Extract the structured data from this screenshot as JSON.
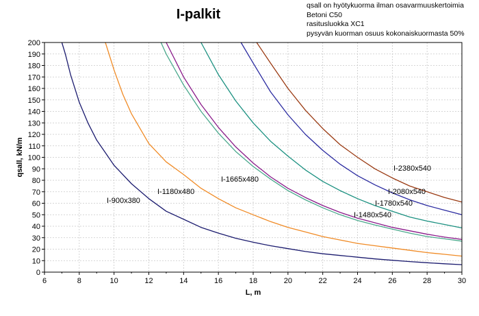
{
  "header": {
    "title": "I-palkit",
    "notes": [
      "qsall on hyötykuorma ilman osavarmuuskertoimia",
      "Betoni C50",
      "rasitusluokka XC1",
      "pysyvän kuorman osuus kokonaiskuormasta 50%"
    ]
  },
  "chart_data": {
    "type": "line",
    "title": "I-palkit",
    "xlabel": "L, m",
    "ylabel": "qsall, kN/m",
    "xlim": [
      6,
      30
    ],
    "ylim": [
      0,
      200
    ],
    "xticks": [
      6,
      8,
      10,
      12,
      14,
      16,
      18,
      20,
      22,
      24,
      26,
      28,
      30
    ],
    "yticks": [
      0,
      10,
      20,
      30,
      40,
      50,
      60,
      70,
      80,
      90,
      100,
      110,
      120,
      130,
      140,
      150,
      160,
      170,
      180,
      190,
      200
    ],
    "grid": true,
    "colors": {
      "I-900x380": "#1a1a6e",
      "I-1180x480": "#f08a24",
      "I-1665x480": "#4aa88c",
      "I-1480x540": "#8a1a8a",
      "I-1780x540": "#1a9080",
      "I-2080x540": "#2a2aa0",
      "I-2380x540": "#9a3a12"
    },
    "series": [
      {
        "name": "I-900x380",
        "label": "I-900x380",
        "x": [
          7,
          7.2,
          7.5,
          8,
          8.5,
          9,
          9.5,
          10,
          11,
          12,
          13,
          14,
          15,
          16,
          17,
          18,
          19,
          20,
          21,
          22,
          23,
          24,
          25,
          26,
          27,
          28,
          29,
          30
        ],
        "y": [
          200,
          190,
          172,
          148,
          130,
          115,
          104,
          93,
          77,
          64,
          53,
          46,
          39,
          34,
          29.5,
          26,
          23,
          20.5,
          18,
          16,
          14.5,
          13,
          11.5,
          10.3,
          9.2,
          8.2,
          7.3,
          6.5
        ]
      },
      {
        "name": "I-1180x480",
        "label": "I-1180x480",
        "x": [
          9.5,
          10,
          10.5,
          11,
          12,
          13,
          14,
          15,
          16,
          17,
          18,
          19,
          20,
          21,
          22,
          23,
          24,
          25,
          26,
          27,
          28,
          29,
          30
        ],
        "y": [
          200,
          176,
          155,
          138,
          112,
          96,
          85,
          73,
          64,
          56,
          50,
          44,
          39,
          35,
          31,
          28,
          25,
          23,
          21,
          19,
          17,
          15.5,
          14
        ]
      },
      {
        "name": "I-1665x480",
        "label": "I-1665x480",
        "x": [
          12.7,
          13,
          14,
          15,
          16,
          17,
          18,
          19,
          20,
          21,
          22,
          23,
          24,
          25,
          26,
          27,
          28,
          29,
          30
        ],
        "y": [
          200,
          190,
          163,
          140,
          121,
          105,
          92,
          81,
          71,
          63,
          56,
          50,
          45,
          41,
          37.5,
          34,
          31,
          29,
          27
        ]
      },
      {
        "name": "I-1480x540",
        "label": "I-1480x540",
        "x": [
          13,
          14,
          15,
          16,
          17,
          18,
          19,
          20,
          21,
          22,
          23,
          24,
          25,
          26,
          27,
          28,
          29,
          30
        ],
        "y": [
          200,
          170,
          146,
          126,
          109,
          95,
          83,
          73,
          65,
          58,
          52,
          47,
          43,
          39,
          36,
          33,
          30.5,
          28.5
        ]
      },
      {
        "name": "I-1780x540",
        "label": "I-1780x540",
        "x": [
          15,
          16,
          17,
          18,
          19,
          20,
          21,
          22,
          23,
          24,
          25,
          26,
          27,
          28,
          29,
          30
        ],
        "y": [
          200,
          172,
          149,
          130,
          114,
          101,
          89,
          79,
          71,
          64,
          58,
          53,
          48,
          44.5,
          41.5,
          38.5
        ]
      },
      {
        "name": "I-2080x540",
        "label": "I-2080x540",
        "x": [
          17.3,
          18,
          19,
          20,
          21,
          22,
          23,
          24,
          25,
          26,
          27,
          28,
          29,
          30
        ],
        "y": [
          200,
          182,
          157,
          137,
          120,
          106,
          94,
          84,
          76,
          69,
          63,
          58,
          54,
          50
        ]
      },
      {
        "name": "I-2380x540",
        "label": "I-2380x540",
        "x": [
          18.2,
          19,
          20,
          21,
          22,
          23,
          24,
          25,
          26,
          27,
          28,
          29,
          30
        ],
        "y": [
          200,
          182,
          160,
          141,
          125,
          111,
          100,
          90,
          82,
          75,
          70,
          65,
          61
        ]
      }
    ]
  }
}
